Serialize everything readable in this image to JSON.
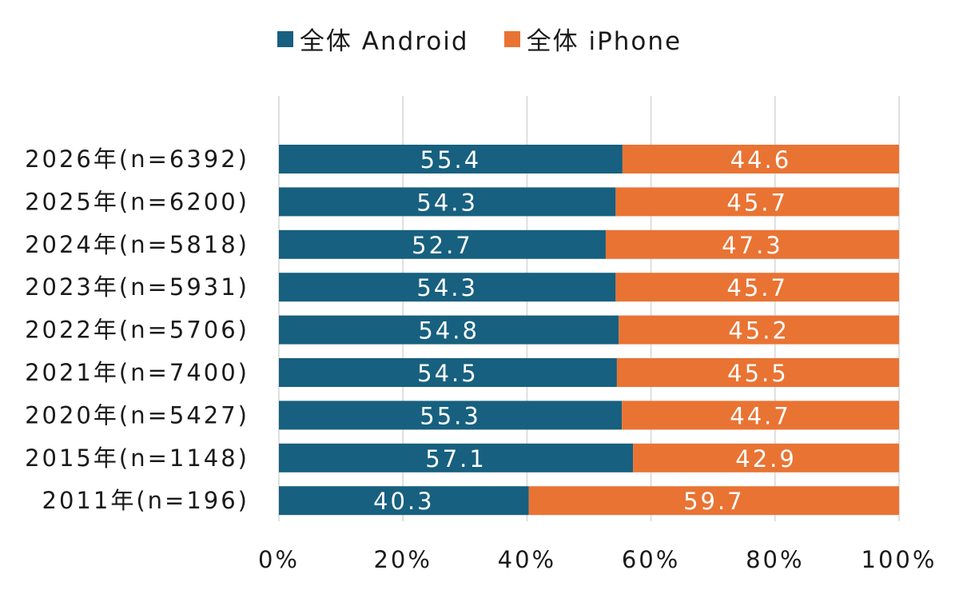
{
  "chart_data": {
    "type": "bar",
    "orientation": "horizontal",
    "stacked": true,
    "title": "",
    "xlabel": "",
    "ylabel": "",
    "xlim": [
      0,
      100
    ],
    "x_ticks": [
      "0%",
      "20%",
      "40%",
      "60%",
      "80%",
      "100%"
    ],
    "grid": "vertical",
    "legend_position": "top-center",
    "categories": [
      "2026年(n=6392)",
      "2025年(n=6200)",
      "2024年(n=5818)",
      "2023年(n=5931)",
      "2022年(n=5706)",
      "2021年(n=7400)",
      "2020年(n=5427)",
      "2015年(n=1148)",
      "2011年(n=196)"
    ],
    "series": [
      {
        "name": "全体 Android",
        "color": "#17607f",
        "values": [
          55.4,
          54.3,
          52.7,
          54.3,
          54.8,
          54.5,
          55.3,
          57.1,
          40.3
        ],
        "labels": [
          "55.4",
          "54.3",
          "52.7",
          "54.3",
          "54.8",
          "54.5",
          "55.3",
          "57.1",
          "40.3"
        ]
      },
      {
        "name": "全体 iPhone",
        "color": "#e97333",
        "values": [
          44.6,
          45.7,
          47.3,
          45.7,
          45.2,
          45.5,
          44.7,
          42.9,
          59.7
        ],
        "labels": [
          "44.6",
          "45.7",
          "47.3",
          "45.7",
          "45.2",
          "45.5",
          "44.7",
          "42.9",
          "59.7"
        ]
      }
    ]
  }
}
